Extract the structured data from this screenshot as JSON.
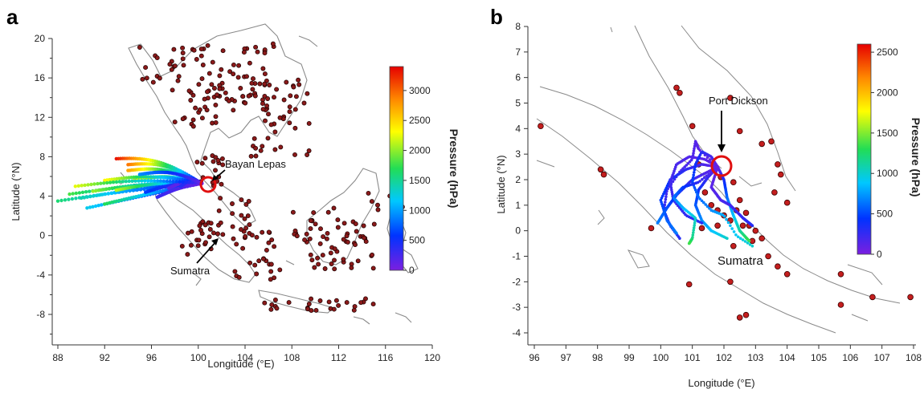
{
  "chart_data": [
    {
      "type": "map-trajectory",
      "panel_label": "a",
      "xlabel": "Longitude (°E)",
      "ylabel": "Latitude (°N)",
      "xlim": [
        86,
        120
      ],
      "ylim": [
        -12,
        20
      ],
      "x_ticks": [
        "88",
        "92",
        "96",
        "100",
        "104",
        "108",
        "112",
        "116",
        "120"
      ],
      "y_ticks": [
        "20",
        "16",
        "12",
        "8",
        "4",
        "0",
        "-4",
        "-8"
      ],
      "colorbar": {
        "title": "Pressure (hPa)",
        "ticks": [
          "3000",
          "2500",
          "2000",
          "1500",
          "1000",
          "500",
          "0"
        ],
        "range": [
          0,
          3400
        ],
        "colors": [
          "#7b1fe0",
          "#0033ff",
          "#00c8ff",
          "#22dd55",
          "#ffff00",
          "#ff8800",
          "#e60000"
        ]
      },
      "annotations": [
        {
          "text": "Bayan Lepas",
          "lon": 100.3,
          "lat": 5.3
        },
        {
          "text": "Sumatra",
          "lon": 101.0,
          "lat": 0.3
        }
      ],
      "receptor": {
        "lon": 100.3,
        "lat": 5.3
      },
      "grid": false
    },
    {
      "type": "map-trajectory",
      "panel_label": "b",
      "xlabel": "Longitude (°E)",
      "ylabel": "Latitude (°N)",
      "xlim": [
        95.8,
        108
      ],
      "ylim": [
        -4.5,
        8
      ],
      "x_ticks": [
        "96",
        "97",
        "98",
        "99",
        "100",
        "101",
        "102",
        "103",
        "104",
        "105",
        "106",
        "107",
        "108"
      ],
      "y_ticks": [
        "8",
        "7",
        "6",
        "5",
        "4",
        "3",
        "2",
        "1",
        "0",
        "-1",
        "-2",
        "-3",
        "-4"
      ],
      "colorbar": {
        "title": "Pressure (hPa)",
        "ticks": [
          "2500",
          "2000",
          "1500",
          "1000",
          "500",
          "0"
        ],
        "range": [
          0,
          2600
        ],
        "colors": [
          "#7b1fe0",
          "#0033ff",
          "#00c8ff",
          "#22dd55",
          "#ffff00",
          "#ff8800",
          "#e60000"
        ]
      },
      "annotations": [
        {
          "text": "Port Dickson",
          "lon": 101.8,
          "lat": 2.5
        },
        {
          "text": "Sumatra",
          "lon": 102.0,
          "lat": -1.0
        }
      ],
      "receptor": {
        "lon": 101.8,
        "lat": 2.5
      },
      "grid": false
    }
  ]
}
